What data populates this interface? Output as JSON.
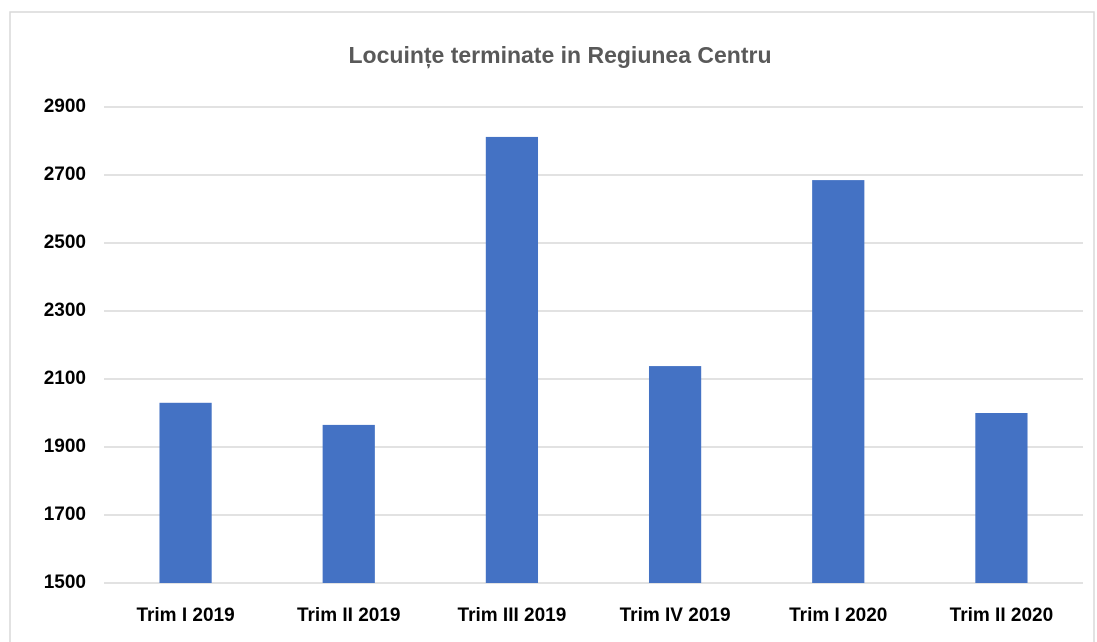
{
  "chart_data": {
    "type": "bar",
    "title": "Locuințe terminate in Regiunea Centru",
    "categories": [
      "Trim I 2019",
      "Trim II 2019",
      "Trim III 2019",
      "Trim IV 2019",
      "Trim I 2020",
      "Trim II 2020"
    ],
    "values": [
      2030,
      1965,
      2812,
      2138,
      2685,
      2000
    ],
    "color": "#4472c4",
    "ylim": [
      1500,
      2900
    ],
    "yticks": [
      1500,
      1700,
      1900,
      2100,
      2300,
      2500,
      2700,
      2900
    ],
    "grid": true
  }
}
